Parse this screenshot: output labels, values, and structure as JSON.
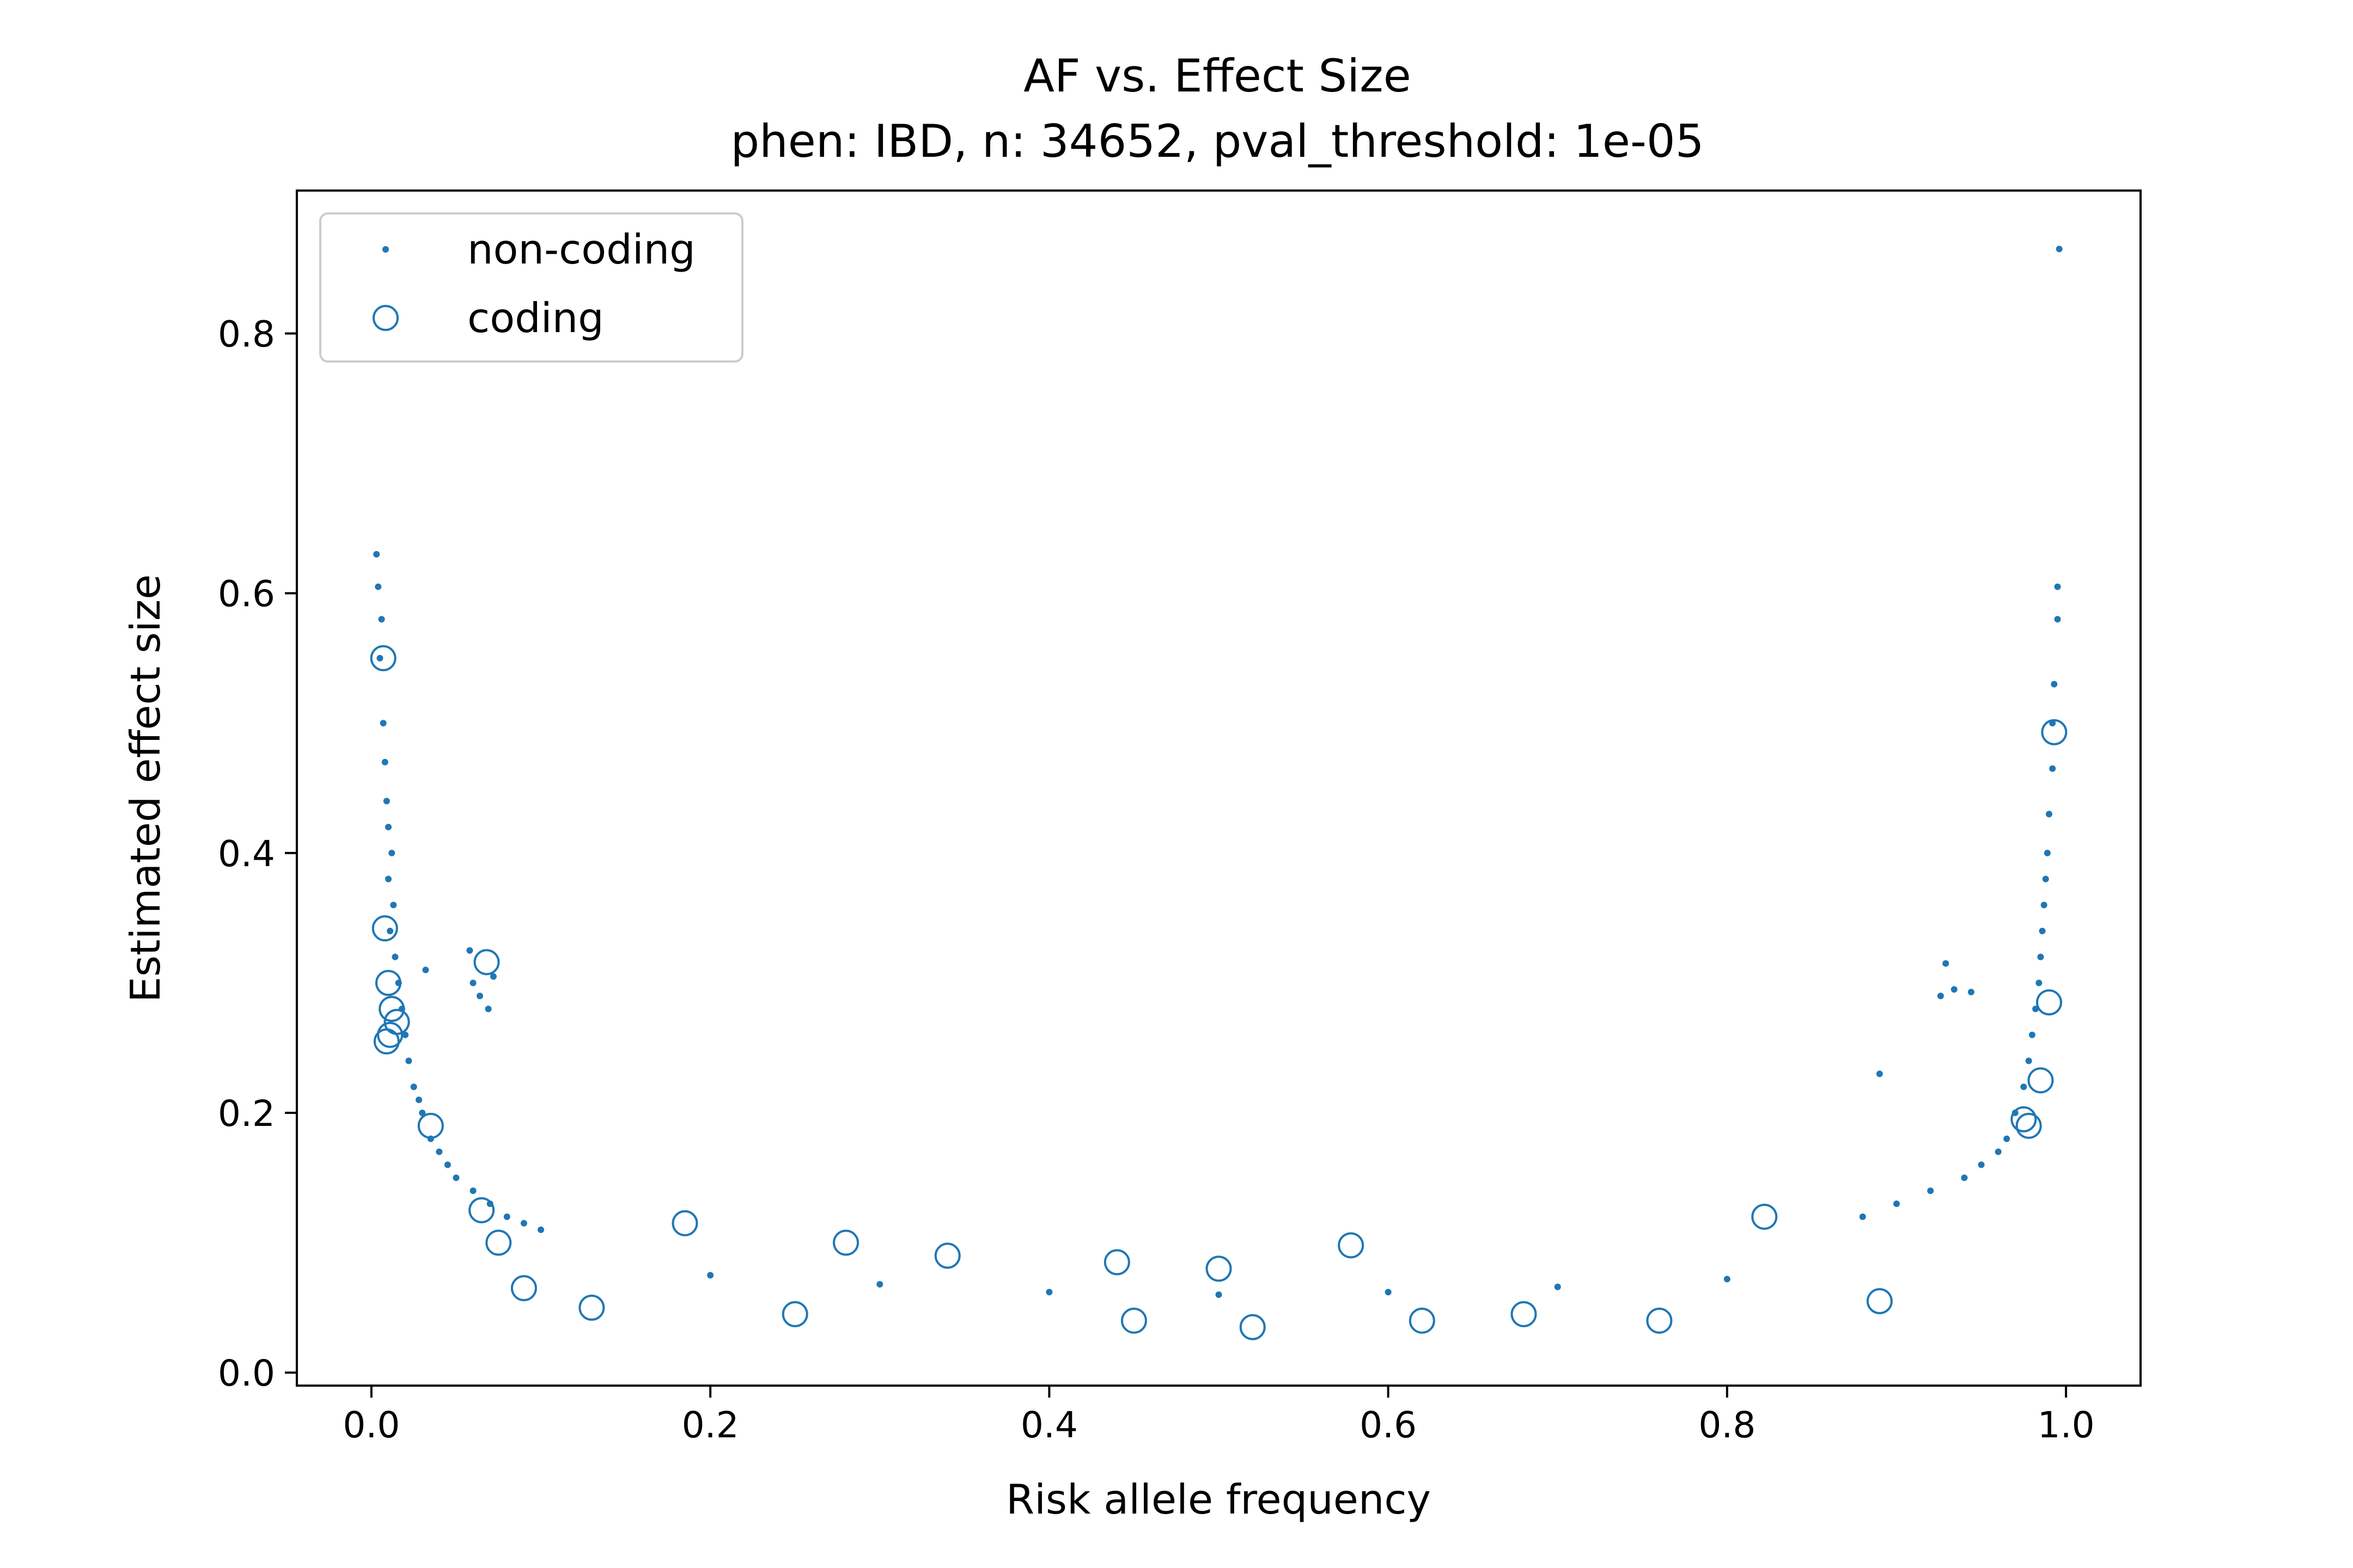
{
  "chart_data": {
    "type": "scatter",
    "title": "AF vs. Effect Size",
    "subtitle": "phen: IBD, n: 34652, pval_threshold: 1e-05",
    "xlabel": "Risk allele frequency",
    "ylabel": "Estimated effect size",
    "xlim": [
      -0.044,
      1.044
    ],
    "ylim": [
      -0.01,
      0.91
    ],
    "xticks": [
      "0.0",
      "0.2",
      "0.4",
      "0.6",
      "0.8",
      "1.0"
    ],
    "xtick_values": [
      0.0,
      0.2,
      0.4,
      0.6,
      0.8,
      1.0
    ],
    "yticks": [
      "0.0",
      "0.2",
      "0.4",
      "0.6",
      "0.8"
    ],
    "ytick_values": [
      0.0,
      0.2,
      0.4,
      0.6,
      0.8
    ],
    "grid": false,
    "legend_position": "upper-left",
    "color": "#1f77b4",
    "series": [
      {
        "name": "non-coding",
        "marker": "dot",
        "points": [
          [
            0.003,
            0.63
          ],
          [
            0.004,
            0.605
          ],
          [
            0.006,
            0.58
          ],
          [
            0.005,
            0.55
          ],
          [
            0.007,
            0.5
          ],
          [
            0.008,
            0.47
          ],
          [
            0.009,
            0.44
          ],
          [
            0.01,
            0.42
          ],
          [
            0.012,
            0.4
          ],
          [
            0.01,
            0.38
          ],
          [
            0.013,
            0.36
          ],
          [
            0.011,
            0.34
          ],
          [
            0.014,
            0.32
          ],
          [
            0.016,
            0.3
          ],
          [
            0.018,
            0.28
          ],
          [
            0.02,
            0.26
          ],
          [
            0.022,
            0.24
          ],
          [
            0.025,
            0.22
          ],
          [
            0.028,
            0.21
          ],
          [
            0.03,
            0.2
          ],
          [
            0.035,
            0.18
          ],
          [
            0.04,
            0.17
          ],
          [
            0.045,
            0.16
          ],
          [
            0.05,
            0.15
          ],
          [
            0.06,
            0.14
          ],
          [
            0.07,
            0.13
          ],
          [
            0.08,
            0.12
          ],
          [
            0.09,
            0.115
          ],
          [
            0.1,
            0.11
          ],
          [
            0.032,
            0.31
          ],
          [
            0.058,
            0.325
          ],
          [
            0.06,
            0.3
          ],
          [
            0.064,
            0.29
          ],
          [
            0.069,
            0.28
          ],
          [
            0.072,
            0.305
          ],
          [
            0.996,
            0.865
          ],
          [
            0.995,
            0.605
          ],
          [
            0.995,
            0.58
          ],
          [
            0.993,
            0.53
          ],
          [
            0.992,
            0.5
          ],
          [
            0.992,
            0.465
          ],
          [
            0.99,
            0.43
          ],
          [
            0.989,
            0.4
          ],
          [
            0.988,
            0.38
          ],
          [
            0.987,
            0.36
          ],
          [
            0.986,
            0.34
          ],
          [
            0.985,
            0.32
          ],
          [
            0.984,
            0.3
          ],
          [
            0.982,
            0.28
          ],
          [
            0.98,
            0.26
          ],
          [
            0.978,
            0.24
          ],
          [
            0.975,
            0.22
          ],
          [
            0.97,
            0.2
          ],
          [
            0.965,
            0.18
          ],
          [
            0.96,
            0.17
          ],
          [
            0.95,
            0.16
          ],
          [
            0.94,
            0.15
          ],
          [
            0.92,
            0.14
          ],
          [
            0.9,
            0.13
          ],
          [
            0.88,
            0.12
          ],
          [
            0.929,
            0.315
          ],
          [
            0.926,
            0.29
          ],
          [
            0.934,
            0.295
          ],
          [
            0.944,
            0.293
          ],
          [
            0.89,
            0.23
          ],
          [
            0.2,
            0.075
          ],
          [
            0.3,
            0.068
          ],
          [
            0.4,
            0.062
          ],
          [
            0.5,
            0.06
          ],
          [
            0.6,
            0.062
          ],
          [
            0.7,
            0.066
          ],
          [
            0.8,
            0.072
          ]
        ]
      },
      {
        "name": "coding",
        "marker": "open-circle",
        "points": [
          [
            0.007,
            0.55
          ],
          [
            0.008,
            0.342
          ],
          [
            0.01,
            0.3
          ],
          [
            0.012,
            0.28
          ],
          [
            0.011,
            0.26
          ],
          [
            0.009,
            0.255
          ],
          [
            0.015,
            0.27
          ],
          [
            0.068,
            0.316
          ],
          [
            0.035,
            0.19
          ],
          [
            0.065,
            0.125
          ],
          [
            0.075,
            0.1
          ],
          [
            0.09,
            0.065
          ],
          [
            0.13,
            0.05
          ],
          [
            0.185,
            0.115
          ],
          [
            0.28,
            0.1
          ],
          [
            0.34,
            0.09
          ],
          [
            0.44,
            0.085
          ],
          [
            0.5,
            0.08
          ],
          [
            0.578,
            0.098
          ],
          [
            0.62,
            0.04
          ],
          [
            0.76,
            0.04
          ],
          [
            0.822,
            0.12
          ],
          [
            0.89,
            0.055
          ],
          [
            0.975,
            0.195
          ],
          [
            0.99,
            0.285
          ],
          [
            0.993,
            0.493
          ],
          [
            0.985,
            0.225
          ],
          [
            0.978,
            0.19
          ],
          [
            0.45,
            0.04
          ],
          [
            0.52,
            0.035
          ],
          [
            0.25,
            0.045
          ],
          [
            0.68,
            0.045
          ]
        ]
      }
    ]
  }
}
